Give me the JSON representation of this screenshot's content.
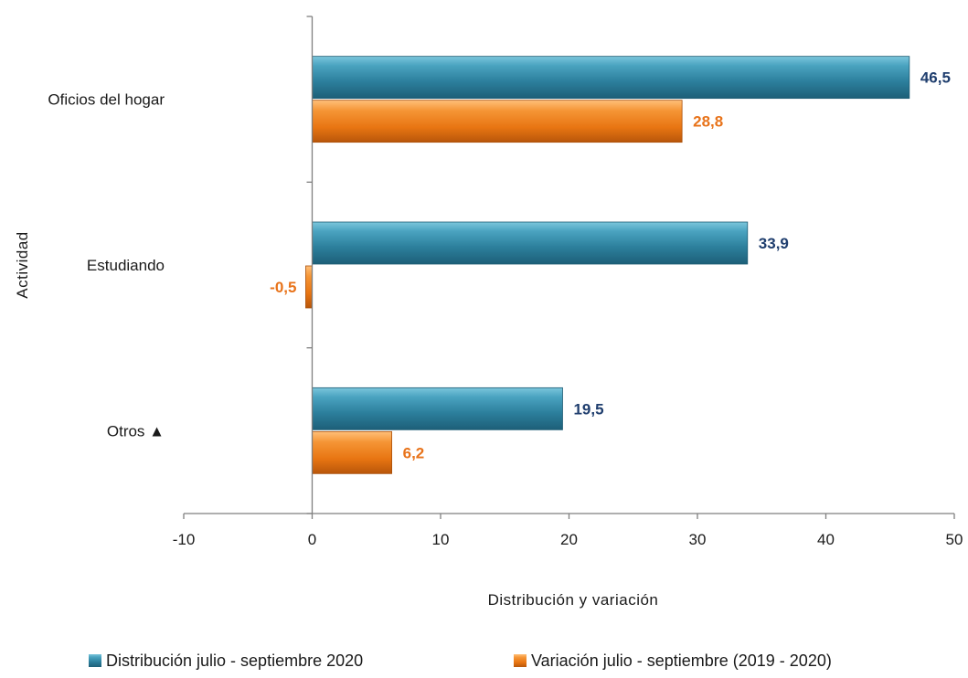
{
  "chart_data": {
    "type": "bar",
    "orientation": "horizontal",
    "categories": [
      "Oficios del hogar",
      "Estudiando",
      "Otros ▲"
    ],
    "series": [
      {
        "name": "Distribución julio - septiembre 2020",
        "values": [
          46.5,
          33.9,
          19.5
        ],
        "labels": [
          "46,5",
          "33,9",
          "19,5"
        ],
        "color": "#2f86a6"
      },
      {
        "name": "Variación julio - septiembre (2019 - 2020)",
        "values": [
          28.8,
          -0.5,
          6.2
        ],
        "labels": [
          "28,8",
          "-0,5",
          "6,2"
        ],
        "color": "#ef7a16"
      }
    ],
    "xlabel": "Distribución y variación",
    "ylabel": "Actividad",
    "xlim": [
      -10,
      50
    ],
    "xticks": [
      -10,
      0,
      10,
      20,
      30,
      40,
      50
    ],
    "xtick_labels": [
      "-10",
      "0",
      "10",
      "20",
      "30",
      "40",
      "50"
    ],
    "label_colors": {
      "series_1": "#1f3e6e",
      "series_2": "#e8731a"
    },
    "grid": false,
    "legend_position": "bottom"
  }
}
